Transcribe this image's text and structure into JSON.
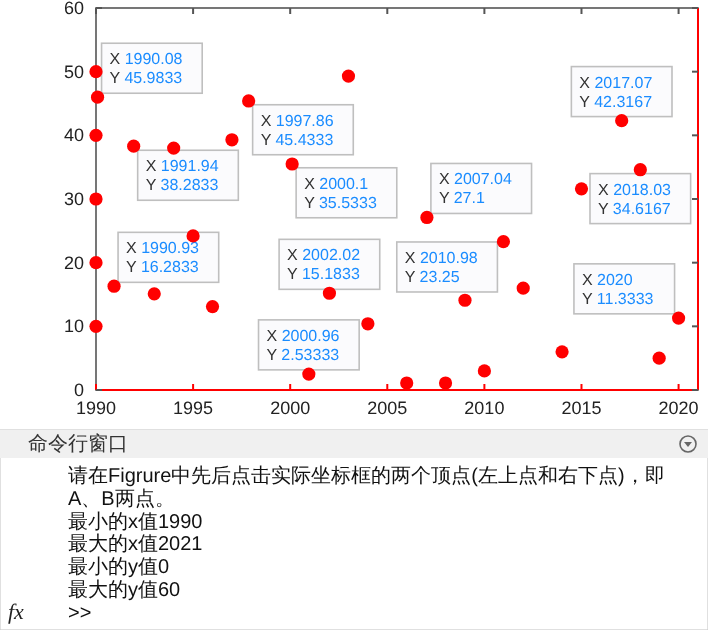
{
  "chart_data": {
    "type": "scatter",
    "x": [
      1990,
      1990,
      1990,
      1990,
      1990,
      1990.08,
      1991.94,
      1994,
      1997,
      1997.86,
      2003,
      2000.1,
      2017.07,
      2018.03,
      2015,
      2007.04,
      2010.98,
      1990.93,
      1993,
      1995,
      1996,
      2002.02,
      2004,
      2000.96,
      2006,
      2008,
      2009,
      2010,
      2012,
      2014,
      2019,
      2020
    ],
    "series": [
      {
        "color": "#ff0000",
        "values": [
          50,
          40,
          30,
          20,
          10,
          46,
          38.3,
          38,
          39.3,
          45.4,
          49.3,
          35.5,
          42.3,
          34.6,
          31.6,
          27.1,
          23.3,
          16.3,
          15.1,
          24.2,
          13.1,
          15.2,
          10.4,
          2.5,
          1.1,
          1.1,
          14.1,
          3,
          16,
          6,
          5,
          11.3
        ]
      }
    ],
    "marker": "circle",
    "grid": false,
    "xlim": [
      1990,
      2021
    ],
    "xticks": [
      1990,
      1995,
      2000,
      2005,
      2010,
      2015,
      2020
    ],
    "ylim": [
      0,
      60
    ],
    "yticks": [
      0,
      10,
      20,
      30,
      40,
      50,
      60
    ],
    "annotations": [
      {
        "text": "X 1990.08\nY 45.9833",
        "x": 1990.08,
        "y": 45.9833
      },
      {
        "text": "X 1991.94\nY 38.2833",
        "x": 1991.94,
        "y": 38.2833
      },
      {
        "text": "X 1997.86\nY 45.4333",
        "x": 1997.86,
        "y": 45.4333
      },
      {
        "text": "X 2000.1\nY 35.5333",
        "x": 2000.1,
        "y": 35.5333
      },
      {
        "text": "X 2017.07\nY 42.3167",
        "x": 2017.07,
        "y": 42.3167
      },
      {
        "text": "X 2018.03\nY 34.6167",
        "x": 2018.03,
        "y": 34.6167
      },
      {
        "text": "X 2007.04\nY 27.1",
        "x": 2007.04,
        "y": 27.1
      },
      {
        "text": "X 2010.98\nY 23.25",
        "x": 2010.98,
        "y": 23.25
      },
      {
        "text": "X 1990.93\nY 16.2833",
        "x": 1990.93,
        "y": 16.2833
      },
      {
        "text": "X 2002.02\nY 15.1833",
        "x": 2002.02,
        "y": 15.1833
      },
      {
        "text": "X 2000.96\nY 2.53333",
        "x": 2000.96,
        "y": 2.53333
      },
      {
        "text": "X 2020\nY 11.3333",
        "x": 2020,
        "y": 11.3333
      },
      "命令行窗口",
      "请在Figrure中先后点击实际坐标框的两个顶点(左上点和右下点)，即A、B两点。",
      "最小的x值1990",
      "最大的x值2021",
      "最小的y值0",
      "最大的y值60",
      ">>",
      "fx"
    ]
  }
}
